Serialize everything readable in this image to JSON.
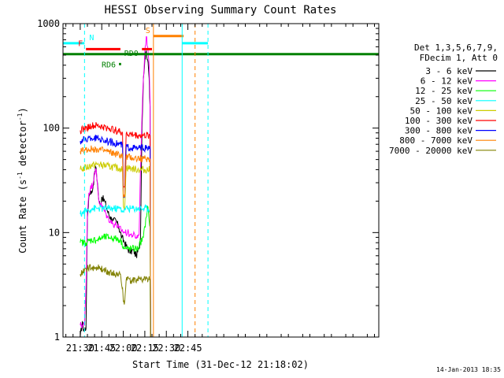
{
  "chart_data": {
    "type": "line",
    "title": "HESSI Observing Summary Count Rates",
    "xlabel": "Start Time (31-Dec-12 21:18:02)",
    "ylabel_main": "Count Rate (s",
    "ylabel_sup1": "-1",
    "ylabel_mid": " detector",
    "ylabel_sup2": "-1",
    "ylabel_end": ")",
    "yscale": "log",
    "xlim_min": [
      1278,
      1498
    ],
    "ylim": [
      1,
      1000
    ],
    "x_ticks": [
      {
        "min": 1290,
        "label": "21:30"
      },
      {
        "min": 1305,
        "label": "21:45"
      },
      {
        "min": 1320,
        "label": "22:00"
      },
      {
        "min": 1335,
        "label": "22:15"
      },
      {
        "min": 1350,
        "label": "22:30"
      },
      {
        "min": 1365,
        "label": "22:45"
      }
    ],
    "y_ticks": [
      {
        "value": 1,
        "label": "1"
      },
      {
        "value": 10,
        "label": "10"
      },
      {
        "value": 100,
        "label": "100"
      },
      {
        "value": 1000,
        "label": "1000"
      }
    ],
    "legend": {
      "header1": "Det 1,3,5,6,7,9,",
      "header2": "FDecim 1, Att 0",
      "placement": "right"
    },
    "series": [
      {
        "name": "3 - 6 keV",
        "color": "#000000",
        "points": [
          [
            1290,
            1
          ],
          [
            1291.5,
            1.4
          ],
          [
            1292,
            1.2
          ],
          [
            1294,
            1.2
          ],
          [
            1295,
            14
          ],
          [
            1296,
            22
          ],
          [
            1297,
            25
          ],
          [
            1298,
            24
          ],
          [
            1299,
            28
          ],
          [
            1300,
            38
          ],
          [
            1301,
            42
          ],
          [
            1302,
            30
          ],
          [
            1303,
            20
          ],
          [
            1304,
            18
          ],
          [
            1305,
            22
          ],
          [
            1307,
            20
          ],
          [
            1309,
            16
          ],
          [
            1311,
            14
          ],
          [
            1313,
            13
          ],
          [
            1315,
            13
          ],
          [
            1317,
            11
          ],
          [
            1319,
            9
          ],
          [
            1321,
            8
          ],
          [
            1323,
            7
          ],
          [
            1325,
            6.5
          ],
          [
            1327,
            6.8
          ],
          [
            1329,
            6
          ],
          [
            1331,
            7
          ],
          [
            1332,
            9
          ],
          [
            1333,
            100
          ],
          [
            1334,
            300
          ],
          [
            1335,
            450
          ],
          [
            1336,
            550
          ],
          [
            1337,
            450
          ],
          [
            1338,
            300
          ],
          [
            1338.7,
            160
          ],
          [
            1339,
            0.9
          ]
        ]
      },
      {
        "name": "6 - 12 keV",
        "color": "#ff00ff",
        "points": [
          [
            1290,
            1.3
          ],
          [
            1293,
            1.3
          ],
          [
            1294,
            3
          ],
          [
            1295,
            16
          ],
          [
            1296,
            24
          ],
          [
            1297,
            26
          ],
          [
            1299,
            30
          ],
          [
            1300,
            38
          ],
          [
            1301,
            40
          ],
          [
            1303,
            20
          ],
          [
            1305,
            18
          ],
          [
            1307,
            16
          ],
          [
            1309,
            14
          ],
          [
            1311,
            13
          ],
          [
            1313,
            12
          ],
          [
            1315,
            12
          ],
          [
            1317,
            11
          ],
          [
            1319,
            10.5
          ],
          [
            1321,
            10
          ],
          [
            1323,
            10
          ],
          [
            1325,
            9.5
          ],
          [
            1327,
            9.5
          ],
          [
            1329,
            9
          ],
          [
            1331,
            9.5
          ],
          [
            1332,
            40
          ],
          [
            1333,
            130
          ],
          [
            1334,
            300
          ],
          [
            1335,
            550
          ],
          [
            1336,
            750
          ],
          [
            1337,
            600
          ],
          [
            1338,
            400
          ],
          [
            1338.7,
            180
          ],
          [
            1339,
            0.9
          ]
        ]
      },
      {
        "name": "12 - 25 keV",
        "color": "#00ff00",
        "points": [
          [
            1290,
            8
          ],
          [
            1294,
            8
          ],
          [
            1298,
            8.5
          ],
          [
            1302,
            8.5
          ],
          [
            1306,
            9
          ],
          [
            1310,
            9
          ],
          [
            1314,
            8.8
          ],
          [
            1318,
            8.5
          ],
          [
            1321,
            7
          ],
          [
            1323,
            7
          ],
          [
            1326,
            7
          ],
          [
            1330,
            7
          ],
          [
            1332,
            8
          ],
          [
            1334,
            9
          ],
          [
            1336,
            14
          ],
          [
            1337,
            18
          ],
          [
            1338,
            13
          ],
          [
            1338.7,
            12
          ],
          [
            1339,
            0.9
          ]
        ]
      },
      {
        "name": "25 - 50 keV",
        "color": "#00ffff",
        "points": [
          [
            1290,
            15
          ],
          [
            1294,
            16
          ],
          [
            1298,
            17
          ],
          [
            1302,
            17
          ],
          [
            1306,
            17
          ],
          [
            1310,
            17
          ],
          [
            1314,
            17
          ],
          [
            1318,
            17
          ],
          [
            1320,
            16
          ],
          [
            1321,
            17
          ],
          [
            1325,
            17
          ],
          [
            1330,
            17
          ],
          [
            1334,
            17
          ],
          [
            1338.7,
            17
          ],
          [
            1339,
            0.9
          ]
        ]
      },
      {
        "name": "50 - 100 keV",
        "color": "#cccc00",
        "points": [
          [
            1290,
            40
          ],
          [
            1294,
            42
          ],
          [
            1298,
            44
          ],
          [
            1302,
            45
          ],
          [
            1306,
            44
          ],
          [
            1310,
            43
          ],
          [
            1314,
            42
          ],
          [
            1318,
            41
          ],
          [
            1319.5,
            40
          ],
          [
            1320,
            18
          ],
          [
            1321,
            18
          ],
          [
            1322,
            42
          ],
          [
            1326,
            41
          ],
          [
            1330,
            40
          ],
          [
            1334,
            40
          ],
          [
            1338.7,
            40
          ],
          [
            1339,
            0.9
          ]
        ]
      },
      {
        "name": "100 - 300 keV",
        "color": "#ff0000",
        "points": [
          [
            1290,
            95
          ],
          [
            1294,
            100
          ],
          [
            1298,
            105
          ],
          [
            1302,
            105
          ],
          [
            1306,
            102
          ],
          [
            1310,
            100
          ],
          [
            1314,
            96
          ],
          [
            1318,
            92
          ],
          [
            1319.5,
            90
          ],
          [
            1320,
            28
          ],
          [
            1321,
            28
          ],
          [
            1322,
            88
          ],
          [
            1326,
            87
          ],
          [
            1330,
            85
          ],
          [
            1334,
            85
          ],
          [
            1338.7,
            85
          ],
          [
            1339,
            0.9
          ]
        ]
      },
      {
        "name": "300 - 800 keV",
        "color": "#0000ff",
        "points": [
          [
            1290,
            75
          ],
          [
            1294,
            78
          ],
          [
            1298,
            80
          ],
          [
            1302,
            80
          ],
          [
            1306,
            77
          ],
          [
            1310,
            74
          ],
          [
            1314,
            72
          ],
          [
            1318,
            70
          ],
          [
            1319.5,
            68
          ],
          [
            1320,
            22
          ],
          [
            1321,
            22
          ],
          [
            1322,
            66
          ],
          [
            1326,
            65
          ],
          [
            1330,
            64
          ],
          [
            1334,
            64
          ],
          [
            1338.7,
            64
          ],
          [
            1339,
            0.9
          ]
        ]
      },
      {
        "name": "800 - 7000 keV",
        "color": "#ff8000",
        "points": [
          [
            1290,
            60
          ],
          [
            1294,
            62
          ],
          [
            1298,
            63
          ],
          [
            1302,
            63
          ],
          [
            1306,
            61
          ],
          [
            1310,
            59
          ],
          [
            1314,
            57
          ],
          [
            1318,
            55
          ],
          [
            1319.5,
            54
          ],
          [
            1320,
            22
          ],
          [
            1321,
            22
          ],
          [
            1322,
            53
          ],
          [
            1326,
            52
          ],
          [
            1330,
            51
          ],
          [
            1334,
            51
          ],
          [
            1338.7,
            51
          ],
          [
            1339,
            0.9
          ]
        ]
      },
      {
        "name": "7000 - 20000 keV",
        "color": "#808000",
        "points": [
          [
            1290,
            4
          ],
          [
            1294,
            4.5
          ],
          [
            1298,
            4.6
          ],
          [
            1302,
            4.6
          ],
          [
            1306,
            4.4
          ],
          [
            1310,
            4.2
          ],
          [
            1314,
            4
          ],
          [
            1318,
            4
          ],
          [
            1319.5,
            3
          ],
          [
            1320,
            2.2
          ],
          [
            1321,
            2.2
          ],
          [
            1322,
            3.5
          ],
          [
            1326,
            3.5
          ],
          [
            1330,
            3.6
          ],
          [
            1334,
            3.6
          ],
          [
            1338.7,
            3.6
          ],
          [
            1339,
            0.9
          ]
        ]
      }
    ],
    "flags": [
      {
        "label": "N",
        "color": "#00ffff",
        "y": 650,
        "segments": [
          [
            1278,
            1293
          ],
          [
            1361,
            1379
          ]
        ]
      },
      {
        "label": "F",
        "color": "#ff0000",
        "y": 570,
        "segments": [
          [
            1294,
            1318
          ],
          [
            1333,
            1340
          ]
        ]
      },
      {
        "label": "S",
        "color": "#ff8000",
        "y": 760,
        "segments": [
          [
            1341,
            1362
          ]
        ]
      },
      {
        "label": "RD6",
        "color": "#008000",
        "y": 410,
        "segments": [
          [
            1317,
            1318.5
          ]
        ]
      },
      {
        "label": "RD0",
        "color": "#008000",
        "y": 510,
        "segments": [
          [
            1278,
            1498
          ]
        ]
      }
    ],
    "vlines": [
      {
        "x": 1278,
        "color": "#00ffff",
        "dashed": false
      },
      {
        "x": 1293,
        "color": "#00ffff",
        "dashed": true
      },
      {
        "x": 1341,
        "color": "#ff8000",
        "dashed": false
      },
      {
        "x": 1361,
        "color": "#00ffff",
        "dashed": false
      },
      {
        "x": 1370,
        "color": "#ff8000",
        "dashed": true
      },
      {
        "x": 1379,
        "color": "#00ffff",
        "dashed": true
      }
    ],
    "grid": false,
    "timestamp": "14-Jan-2013 18:35"
  }
}
